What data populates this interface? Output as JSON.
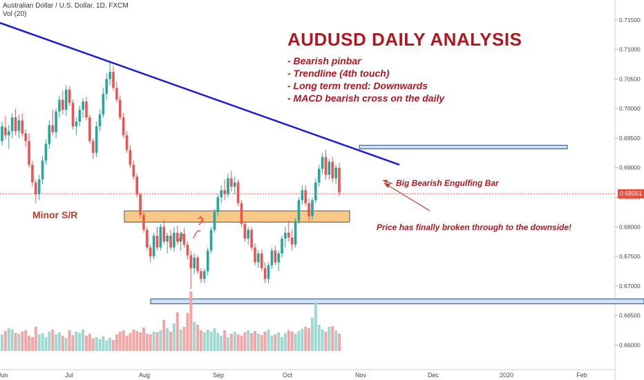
{
  "header": {
    "symbol_line": "Australian Dollar / U.S. Dollar, 1D, FXCM",
    "volume_line": "Vol (20)"
  },
  "annotation": {
    "title": "AUDUSD DAILY ANALYSIS",
    "bullets": [
      "- Bearish pinbar",
      "- Trendline (4th touch)",
      "- Long term trend: Downwards",
      "- MACD bearish cross on the daily"
    ],
    "engulfing_note": "Big Bearish Engulfing Bar",
    "breakout_note": "Price has finally broken through to the downside!",
    "sr_label": "Minor S/R"
  },
  "current_price": "0.68561",
  "colors": {
    "bull": "#26a69a",
    "bear": "#ef5350",
    "trendline": "#1a1adb",
    "zone_orange": "#f8c888",
    "zone_blue": "#cfe1f3",
    "text_red": "#b0171f"
  },
  "chart_data": {
    "type": "candlestick",
    "x_ticks": [
      "Jun",
      "Jul",
      "Aug",
      "Sep",
      "Oct",
      "Nov",
      "Dec",
      "2020",
      "Feb"
    ],
    "y_ticks": [
      "0.71500",
      "0.71000",
      "0.70500",
      "0.70000",
      "0.69500",
      "0.69000",
      "0.68500",
      "0.68000",
      "0.67500",
      "0.67000",
      "0.66500",
      "0.66000"
    ],
    "ylim": [
      0.659,
      0.7165
    ],
    "series": [
      {
        "name": "AUDUSD",
        "ohlc": [
          [
            0.6945,
            0.6978,
            0.6938,
            0.697
          ],
          [
            0.6968,
            0.6988,
            0.6948,
            0.6955
          ],
          [
            0.6955,
            0.6972,
            0.6932,
            0.6962
          ],
          [
            0.6962,
            0.6992,
            0.695,
            0.6985
          ],
          [
            0.6985,
            0.7,
            0.6955,
            0.6962
          ],
          [
            0.6962,
            0.699,
            0.695,
            0.698
          ],
          [
            0.698,
            0.6992,
            0.6952,
            0.6958
          ],
          [
            0.6958,
            0.6965,
            0.6935,
            0.6945
          ],
          [
            0.6945,
            0.6958,
            0.69,
            0.6905
          ],
          [
            0.6905,
            0.6912,
            0.6868,
            0.6875
          ],
          [
            0.6875,
            0.688,
            0.684,
            0.6855
          ],
          [
            0.6855,
            0.6888,
            0.6845,
            0.688
          ],
          [
            0.688,
            0.692,
            0.6872,
            0.6912
          ],
          [
            0.6912,
            0.6948,
            0.6905,
            0.694
          ],
          [
            0.694,
            0.698,
            0.6932,
            0.6972
          ],
          [
            0.6972,
            0.6998,
            0.6955,
            0.696
          ],
          [
            0.696,
            0.7,
            0.695,
            0.6995
          ],
          [
            0.6995,
            0.7022,
            0.6985,
            0.7015
          ],
          [
            0.7015,
            0.703,
            0.699,
            0.6998
          ],
          [
            0.6998,
            0.704,
            0.6988,
            0.7032
          ],
          [
            0.7032,
            0.7038,
            0.7005,
            0.701
          ],
          [
            0.701,
            0.7015,
            0.6965,
            0.697
          ],
          [
            0.697,
            0.6985,
            0.6955,
            0.6978
          ],
          [
            0.6978,
            0.7005,
            0.697,
            0.6998
          ],
          [
            0.6998,
            0.7018,
            0.6985,
            0.7012
          ],
          [
            0.7012,
            0.702,
            0.698,
            0.6985
          ],
          [
            0.6985,
            0.699,
            0.694,
            0.6945
          ],
          [
            0.6945,
            0.695,
            0.6915,
            0.6925
          ],
          [
            0.6925,
            0.6978,
            0.6918,
            0.697
          ],
          [
            0.697,
            0.6998,
            0.6962,
            0.699
          ],
          [
            0.699,
            0.7035,
            0.6985,
            0.7025
          ],
          [
            0.7025,
            0.706,
            0.7015,
            0.705
          ],
          [
            0.705,
            0.708,
            0.704,
            0.7062
          ],
          [
            0.7062,
            0.7072,
            0.703,
            0.7035
          ],
          [
            0.7035,
            0.7045,
            0.701,
            0.7015
          ],
          [
            0.7015,
            0.7022,
            0.698,
            0.6985
          ],
          [
            0.6985,
            0.6992,
            0.695,
            0.6955
          ],
          [
            0.6955,
            0.6962,
            0.6925,
            0.693
          ],
          [
            0.693,
            0.6938,
            0.69,
            0.6905
          ],
          [
            0.6905,
            0.6912,
            0.688,
            0.6885
          ],
          [
            0.6885,
            0.689,
            0.685,
            0.6855
          ],
          [
            0.6855,
            0.6858,
            0.6815,
            0.682
          ],
          [
            0.682,
            0.6825,
            0.679,
            0.6795
          ],
          [
            0.6795,
            0.68,
            0.676,
            0.6765
          ],
          [
            0.6765,
            0.677,
            0.674,
            0.675
          ],
          [
            0.675,
            0.679,
            0.6745,
            0.6785
          ],
          [
            0.6785,
            0.68,
            0.676,
            0.6765
          ],
          [
            0.6765,
            0.6805,
            0.676,
            0.68
          ],
          [
            0.68,
            0.6812,
            0.677,
            0.6775
          ],
          [
            0.6775,
            0.679,
            0.6755,
            0.6785
          ],
          [
            0.6785,
            0.6795,
            0.676,
            0.6765
          ],
          [
            0.6765,
            0.68,
            0.6758,
            0.679
          ],
          [
            0.679,
            0.6802,
            0.677,
            0.6775
          ],
          [
            0.6775,
            0.6792,
            0.676,
            0.6788
          ],
          [
            0.6788,
            0.6798,
            0.6765,
            0.677
          ],
          [
            0.677,
            0.6775,
            0.6745,
            0.6752
          ],
          [
            0.6752,
            0.676,
            0.6695,
            0.673
          ],
          [
            0.673,
            0.6755,
            0.672,
            0.6748
          ],
          [
            0.6748,
            0.6752,
            0.672,
            0.6725
          ],
          [
            0.6725,
            0.673,
            0.6705,
            0.6712
          ],
          [
            0.6712,
            0.673,
            0.6705,
            0.6725
          ],
          [
            0.6725,
            0.6765,
            0.6718,
            0.676
          ],
          [
            0.676,
            0.68,
            0.6755,
            0.6795
          ],
          [
            0.6795,
            0.683,
            0.679,
            0.6825
          ],
          [
            0.6825,
            0.6855,
            0.6818,
            0.685
          ],
          [
            0.685,
            0.687,
            0.684,
            0.6862
          ],
          [
            0.6862,
            0.688,
            0.6845,
            0.6855
          ],
          [
            0.6855,
            0.689,
            0.685,
            0.6882
          ],
          [
            0.6882,
            0.6895,
            0.686,
            0.6868
          ],
          [
            0.6868,
            0.6885,
            0.6855,
            0.6875
          ],
          [
            0.6875,
            0.688,
            0.6835,
            0.684
          ],
          [
            0.684,
            0.6845,
            0.68,
            0.6805
          ],
          [
            0.6805,
            0.681,
            0.6775,
            0.678
          ],
          [
            0.678,
            0.68,
            0.677,
            0.6795
          ],
          [
            0.6795,
            0.68,
            0.676,
            0.6765
          ],
          [
            0.6765,
            0.6772,
            0.6735,
            0.674
          ],
          [
            0.674,
            0.676,
            0.673,
            0.6755
          ],
          [
            0.6755,
            0.6762,
            0.6725,
            0.673
          ],
          [
            0.673,
            0.674,
            0.6705,
            0.6712
          ],
          [
            0.6712,
            0.674,
            0.6705,
            0.6735
          ],
          [
            0.6735,
            0.6765,
            0.6728,
            0.676
          ],
          [
            0.676,
            0.6768,
            0.6735,
            0.674
          ],
          [
            0.674,
            0.676,
            0.6725,
            0.6755
          ],
          [
            0.6755,
            0.6785,
            0.6748,
            0.678
          ],
          [
            0.678,
            0.68,
            0.6765,
            0.679
          ],
          [
            0.679,
            0.681,
            0.6775,
            0.6782
          ],
          [
            0.6782,
            0.6795,
            0.676,
            0.677
          ],
          [
            0.677,
            0.6815,
            0.6765,
            0.681
          ],
          [
            0.681,
            0.685,
            0.6805,
            0.6845
          ],
          [
            0.6845,
            0.687,
            0.6838,
            0.6862
          ],
          [
            0.6862,
            0.687,
            0.6835,
            0.684
          ],
          [
            0.684,
            0.6848,
            0.681,
            0.6818
          ],
          [
            0.6818,
            0.685,
            0.6812,
            0.6845
          ],
          [
            0.6845,
            0.6882,
            0.684,
            0.6875
          ],
          [
            0.6875,
            0.6905,
            0.6868,
            0.6898
          ],
          [
            0.6898,
            0.6925,
            0.689,
            0.6918
          ],
          [
            0.6918,
            0.693,
            0.688,
            0.6888
          ],
          [
            0.6888,
            0.6915,
            0.688,
            0.691
          ],
          [
            0.691,
            0.6918,
            0.6875,
            0.6882
          ],
          [
            0.6882,
            0.6905,
            0.6872,
            0.69
          ],
          [
            0.69,
            0.6908,
            0.6852,
            0.6858
          ]
        ]
      }
    ]
  }
}
